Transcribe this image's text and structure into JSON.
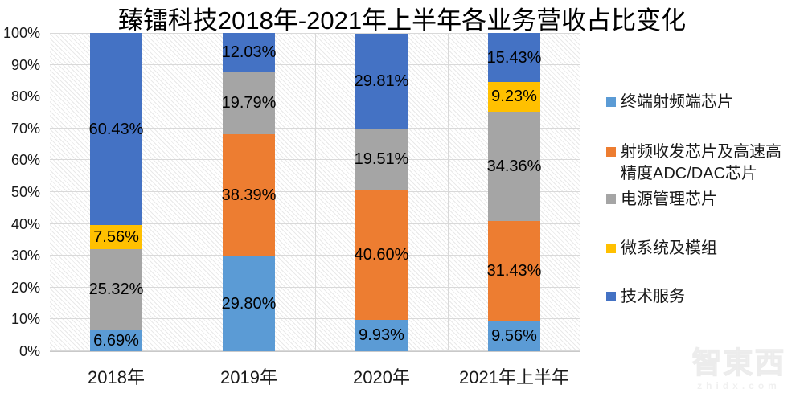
{
  "chart_data": {
    "type": "bar",
    "stacked": true,
    "unit": "%",
    "title": "臻镭科技2018年-2021年上半年各业务营收占比变化",
    "categories": [
      "2018年",
      "2019年",
      "2020年",
      "2021年上半年"
    ],
    "series": [
      {
        "name": "终端射频端芯片",
        "color": "#5B9BD5",
        "values": [
          6.69,
          29.8,
          9.93,
          9.56
        ],
        "labels": [
          "6.69%",
          "29.80%",
          "9.93%",
          "9.56%"
        ]
      },
      {
        "name": "射频收发芯片及高速高精度ADC/DAC芯片",
        "color": "#ED7D31",
        "values": [
          0,
          38.39,
          40.6,
          31.43
        ],
        "labels": [
          "",
          "38.39%",
          "40.60%",
          "31.43%"
        ]
      },
      {
        "name": "电源管理芯片",
        "color": "#A5A5A5",
        "values": [
          25.32,
          19.79,
          19.51,
          34.36
        ],
        "labels": [
          "25.32%",
          "19.79%",
          "19.51%",
          "34.36%"
        ]
      },
      {
        "name": "微系统及模组",
        "color": "#FFC000",
        "values": [
          7.56,
          0,
          0,
          9.23
        ],
        "labels": [
          "7.56%",
          "",
          "",
          "9.23%"
        ]
      },
      {
        "name": "技术服务",
        "color": "#4472C4",
        "values": [
          60.43,
          12.03,
          29.81,
          15.43
        ],
        "labels": [
          "60.43%",
          "12.03%",
          "29.81%",
          "15.43%"
        ]
      }
    ],
    "y_axis": {
      "min": 0,
      "max": 100,
      "tick_step": 10,
      "tick_labels": [
        "0%",
        "10%",
        "20%",
        "30%",
        "40%",
        "50%",
        "60%",
        "70%",
        "80%",
        "90%",
        "100%"
      ]
    },
    "x_axis": {
      "tick_labels": [
        "2018年",
        "2019年",
        "2020年",
        "2021年上半年"
      ]
    },
    "legend": {
      "position": "right",
      "entries": [
        {
          "lines": [
            "终端射频端芯片"
          ],
          "color": "#5B9BD5"
        },
        {
          "lines": [
            "射频收发芯片及高速高",
            "精度ADC/DAC芯片"
          ],
          "color": "#ED7D31"
        },
        {
          "lines": [
            "电源管理芯片"
          ],
          "color": "#A5A5A5"
        },
        {
          "lines": [
            "微系统及模组"
          ],
          "color": "#FFC000"
        },
        {
          "lines": [
            "技术服务"
          ],
          "color": "#4472C4"
        }
      ]
    },
    "grid": true,
    "plot_background": "diagonal-hatch",
    "gridline_color": "#d9d9d9"
  },
  "watermark": {
    "logo_text": "智東西",
    "domain_text": "zhidx.com"
  }
}
